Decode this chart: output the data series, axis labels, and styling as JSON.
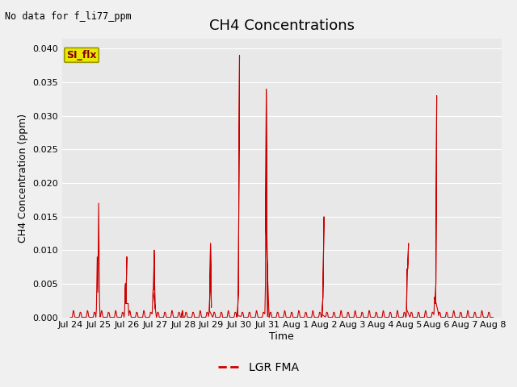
{
  "title": "CH4 Concentrations",
  "no_data_text": "No data for f_li77_ppm",
  "ylabel": "CH4 Concentration (ppm)",
  "xlabel": "Time",
  "ylim": [
    0,
    0.0415
  ],
  "yticks": [
    0.0,
    0.005,
    0.01,
    0.015,
    0.02,
    0.025,
    0.03,
    0.035,
    0.04
  ],
  "line_color": "#cc0000",
  "plot_bg_color": "#e8e8e8",
  "fig_bg_color": "#f2f2f2",
  "si_flx_box_facecolor": "#e8e800",
  "si_flx_box_edgecolor": "#999900",
  "si_flx_text_color": "#880000",
  "legend_label": "LGR FMA",
  "title_fontsize": 13,
  "label_fontsize": 9,
  "tick_fontsize": 8,
  "x_tick_labels": [
    "Jul 24",
    "Jul 25",
    "Jul 26",
    "Jul 27",
    "Jul 28",
    "Jul 29",
    "Jul 30",
    "Jul 31",
    "Aug 1",
    "Aug 2",
    "Aug 3",
    "Aug 4",
    "Aug 5",
    "Aug 6",
    "Aug 7",
    "Aug 8"
  ],
  "data_x": [
    0.0,
    0.02,
    0.04,
    0.06,
    0.08,
    0.1,
    0.12,
    0.14,
    0.16,
    0.18,
    0.2,
    0.22,
    0.24,
    0.26,
    0.28,
    0.3,
    0.32,
    0.34,
    0.36,
    0.38,
    0.4,
    0.42,
    0.44,
    0.46,
    0.48,
    0.5,
    0.52,
    0.54,
    0.56,
    0.58,
    0.6,
    0.62,
    0.64,
    0.66,
    0.68,
    0.7,
    0.72,
    0.74,
    0.76,
    0.78,
    0.8,
    0.82,
    0.84,
    0.86,
    0.88,
    0.9,
    0.92,
    0.93,
    0.95,
    0.97,
    1.0,
    1.03,
    1.05,
    1.07,
    1.1,
    1.12,
    1.14,
    1.16,
    1.18,
    1.2,
    1.22,
    1.24,
    1.26,
    1.28,
    1.3,
    1.32,
    1.34,
    1.36,
    1.38,
    1.4,
    1.42,
    1.44,
    1.46,
    1.48,
    1.5,
    1.52,
    1.54,
    1.56,
    1.58,
    1.6,
    1.62,
    1.64,
    1.66,
    1.68,
    1.7,
    1.72,
    1.74,
    1.76,
    1.78,
    1.8,
    1.82,
    1.84,
    1.86,
    1.88,
    1.9,
    1.92,
    1.93,
    1.95,
    1.97,
    2.0,
    1.97,
    1.95,
    1.93,
    2.05,
    2.07,
    2.09,
    2.1,
    2.12,
    2.14,
    2.16,
    2.18,
    2.2,
    2.22,
    2.24,
    2.26,
    2.28,
    2.3,
    2.32,
    2.34,
    2.36,
    2.38,
    2.4,
    2.42,
    2.44,
    2.46,
    2.48,
    2.5,
    2.52,
    2.54,
    2.56,
    2.58,
    2.6,
    2.62,
    2.64,
    2.66,
    2.68,
    2.7,
    2.72,
    2.74,
    2.76,
    2.78,
    2.8,
    2.82,
    2.84,
    2.86,
    2.88,
    2.9,
    2.92,
    2.93,
    2.95,
    2.97,
    3.0,
    2.97,
    2.95,
    2.93,
    3.05,
    3.07,
    3.09,
    3.11,
    3.13,
    3.15,
    3.17,
    3.19,
    3.2,
    3.22,
    3.24,
    3.26,
    3.28,
    3.3,
    3.32,
    3.34,
    3.36,
    3.38,
    3.4,
    3.42,
    3.44,
    3.46,
    3.48,
    3.5,
    3.52,
    3.54,
    3.56,
    3.58,
    3.6,
    3.62,
    3.64,
    3.66,
    3.68,
    3.7,
    3.72,
    3.74,
    3.76,
    3.78,
    3.8,
    3.82,
    3.84,
    3.86,
    3.88,
    3.9,
    3.92,
    3.93,
    3.95,
    3.97,
    4.0,
    3.97,
    3.95,
    3.93,
    4.05,
    4.07,
    4.09,
    4.11,
    4.13,
    4.15,
    4.17,
    4.19,
    4.2,
    4.22,
    4.24,
    4.26,
    4.28,
    4.3,
    4.32,
    4.34,
    4.36,
    4.38,
    4.4,
    4.42,
    4.44,
    4.46,
    4.48,
    4.5,
    4.52,
    4.54,
    4.56,
    4.58,
    4.6,
    4.62,
    4.64,
    4.66,
    4.68,
    4.7,
    4.72,
    4.74,
    4.76,
    4.78,
    4.8,
    4.82,
    4.84,
    4.86,
    4.88,
    4.9,
    4.92,
    4.93,
    4.95,
    4.97,
    5.0,
    4.97,
    4.95,
    4.93,
    5.05,
    5.07,
    5.09,
    5.11,
    5.13,
    5.15,
    5.17,
    5.19,
    5.2,
    5.22,
    5.24,
    5.26,
    5.28,
    5.3,
    5.32,
    5.34,
    5.36,
    5.38,
    5.4,
    5.42,
    5.44,
    5.46,
    5.48,
    5.5,
    5.52,
    5.54,
    5.56,
    5.58,
    5.6,
    5.62,
    5.64,
    5.66,
    5.68,
    5.7,
    5.72,
    5.74,
    5.76,
    5.78,
    5.8,
    5.82,
    5.84,
    5.86,
    5.88,
    5.89,
    5.91,
    5.93,
    5.96,
    6.0,
    5.96,
    5.93,
    5.91,
    5.89,
    6.05,
    6.07,
    6.09,
    6.11,
    6.13,
    6.15,
    6.17,
    6.19,
    6.2,
    6.22,
    6.24,
    6.26,
    6.28,
    6.3,
    6.32,
    6.34,
    6.36,
    6.38,
    6.4,
    6.42,
    6.44,
    6.46,
    6.48,
    6.5,
    6.52,
    6.54,
    6.56,
    6.58,
    6.6,
    6.62,
    6.64,
    6.66,
    6.68,
    6.7,
    6.72,
    6.74,
    6.76,
    6.78,
    6.8,
    6.82,
    6.84,
    6.86,
    6.88,
    6.9,
    6.92,
    6.93,
    6.95,
    6.97,
    7.0,
    6.97,
    6.95,
    6.93,
    7.05,
    7.07,
    7.09,
    7.11,
    7.13,
    7.15,
    7.17,
    7.19,
    7.2,
    7.22,
    7.24,
    7.26,
    7.28,
    7.3,
    7.32,
    7.34,
    7.36,
    7.38,
    7.4,
    7.42,
    7.44,
    7.46,
    7.48,
    7.5,
    7.52,
    7.54,
    7.56,
    7.58,
    7.6,
    7.62,
    7.64,
    7.66,
    7.68,
    7.7,
    7.72,
    7.74,
    7.76,
    7.78,
    7.8,
    7.82,
    7.84,
    7.86,
    7.88,
    7.9,
    7.92,
    7.94,
    7.96,
    7.98,
    8.0,
    8.02,
    8.04,
    8.06,
    8.08,
    8.1,
    8.12,
    8.14,
    8.16,
    8.18,
    8.2,
    8.22,
    8.24,
    8.26,
    8.28,
    8.3,
    8.32,
    8.34,
    8.36,
    8.38,
    8.4,
    8.42,
    8.44,
    8.46,
    8.48,
    8.5,
    8.52,
    8.54,
    8.56,
    8.58,
    8.6,
    8.62,
    8.64,
    8.66,
    8.68,
    8.7,
    8.72,
    8.74,
    8.76,
    8.78,
    8.8,
    8.82,
    8.84,
    8.86,
    8.88,
    8.9,
    8.92,
    8.93,
    8.96,
    9.0,
    8.96,
    8.93,
    9.05,
    9.07,
    9.09,
    9.11,
    9.13,
    9.15,
    9.17,
    9.19,
    9.2,
    9.22,
    9.24,
    9.26,
    9.28,
    9.3,
    9.32,
    9.34,
    9.36,
    9.38,
    9.4,
    9.42,
    9.44,
    9.46,
    9.48,
    9.5,
    9.52,
    9.54,
    9.56,
    9.58,
    9.6,
    9.62,
    9.64,
    9.66,
    9.68,
    9.7,
    9.72,
    9.74,
    9.76,
    9.78,
    9.8,
    9.82,
    9.84,
    9.86,
    9.88,
    9.9,
    9.92,
    9.94,
    9.96,
    9.98,
    10.0,
    10.02,
    10.04,
    10.06,
    10.08,
    10.1,
    10.12,
    10.14,
    10.16,
    10.18,
    10.2,
    10.22,
    10.24,
    10.26,
    10.28,
    10.3,
    10.32,
    10.34,
    10.36,
    10.38,
    10.4,
    10.42,
    10.44,
    10.46,
    10.48,
    10.5,
    10.52,
    10.54,
    10.56,
    10.58,
    10.6,
    10.62,
    10.64,
    10.66,
    10.68,
    10.7,
    10.72,
    10.74,
    10.76,
    10.78,
    10.8,
    10.82,
    10.84,
    10.86,
    10.88,
    10.9,
    10.92,
    10.94,
    10.96,
    10.98,
    11.0,
    11.02,
    11.04,
    11.06,
    11.08,
    11.1,
    11.12,
    11.14,
    11.16,
    11.18,
    11.2,
    11.22,
    11.24,
    11.26,
    11.28,
    11.3,
    11.32,
    11.34,
    11.36,
    11.38,
    11.4,
    11.42,
    11.44,
    11.46,
    11.48,
    11.5,
    11.52,
    11.54,
    11.56,
    11.58,
    11.6,
    11.62,
    11.64,
    11.66,
    11.68,
    11.7,
    11.72,
    11.74,
    11.76,
    11.78,
    11.8,
    11.82,
    11.84,
    11.86,
    11.88,
    11.9,
    11.92,
    11.93,
    11.95,
    11.97,
    12.0,
    11.97,
    11.95,
    11.93,
    12.05,
    12.07,
    12.09,
    12.11,
    12.13,
    12.15,
    12.17,
    12.19,
    12.2,
    12.22,
    12.24,
    12.26,
    12.28,
    12.3,
    12.32,
    12.34,
    12.36,
    12.38,
    12.4,
    12.42,
    12.44,
    12.46,
    12.48,
    12.5,
    12.52,
    12.54,
    12.56,
    12.58,
    12.6,
    12.62,
    12.64,
    12.66,
    12.68,
    12.7,
    12.72,
    12.74,
    12.76,
    12.78,
    12.8,
    12.82,
    12.84,
    12.86,
    12.88,
    12.9,
    12.92,
    12.93,
    12.95,
    12.97,
    13.0,
    12.97,
    12.95,
    12.93,
    13.05,
    13.07,
    13.09,
    13.11,
    13.13,
    13.15,
    13.17,
    13.19,
    13.2,
    13.22,
    13.24,
    13.26,
    13.28,
    13.3,
    13.32,
    13.34,
    13.36,
    13.38,
    13.4,
    13.42,
    13.44,
    13.46,
    13.48,
    13.5,
    13.52,
    13.54,
    13.56,
    13.58,
    13.6,
    13.62,
    13.64,
    13.66,
    13.68,
    13.7,
    13.72,
    13.74,
    13.76,
    13.78,
    13.8,
    13.82,
    13.84,
    13.86,
    13.88,
    13.9,
    13.92,
    13.94,
    13.96,
    13.98,
    14.0,
    14.02,
    14.04,
    14.06,
    14.08,
    14.1,
    14.12,
    14.14,
    14.16,
    14.18,
    14.2,
    14.22,
    14.24,
    14.26,
    14.28,
    14.3,
    14.32,
    14.34,
    14.36,
    14.38,
    14.4,
    14.42,
    14.44,
    14.46,
    14.48,
    14.5,
    14.52,
    14.54,
    14.56,
    14.58,
    14.6,
    14.62,
    14.64,
    14.66,
    14.68,
    14.7,
    14.72,
    14.74,
    14.76,
    14.78,
    14.8,
    14.82,
    14.84,
    14.86,
    14.88,
    14.9,
    14.92,
    14.94,
    14.96,
    14.98,
    15.0
  ]
}
